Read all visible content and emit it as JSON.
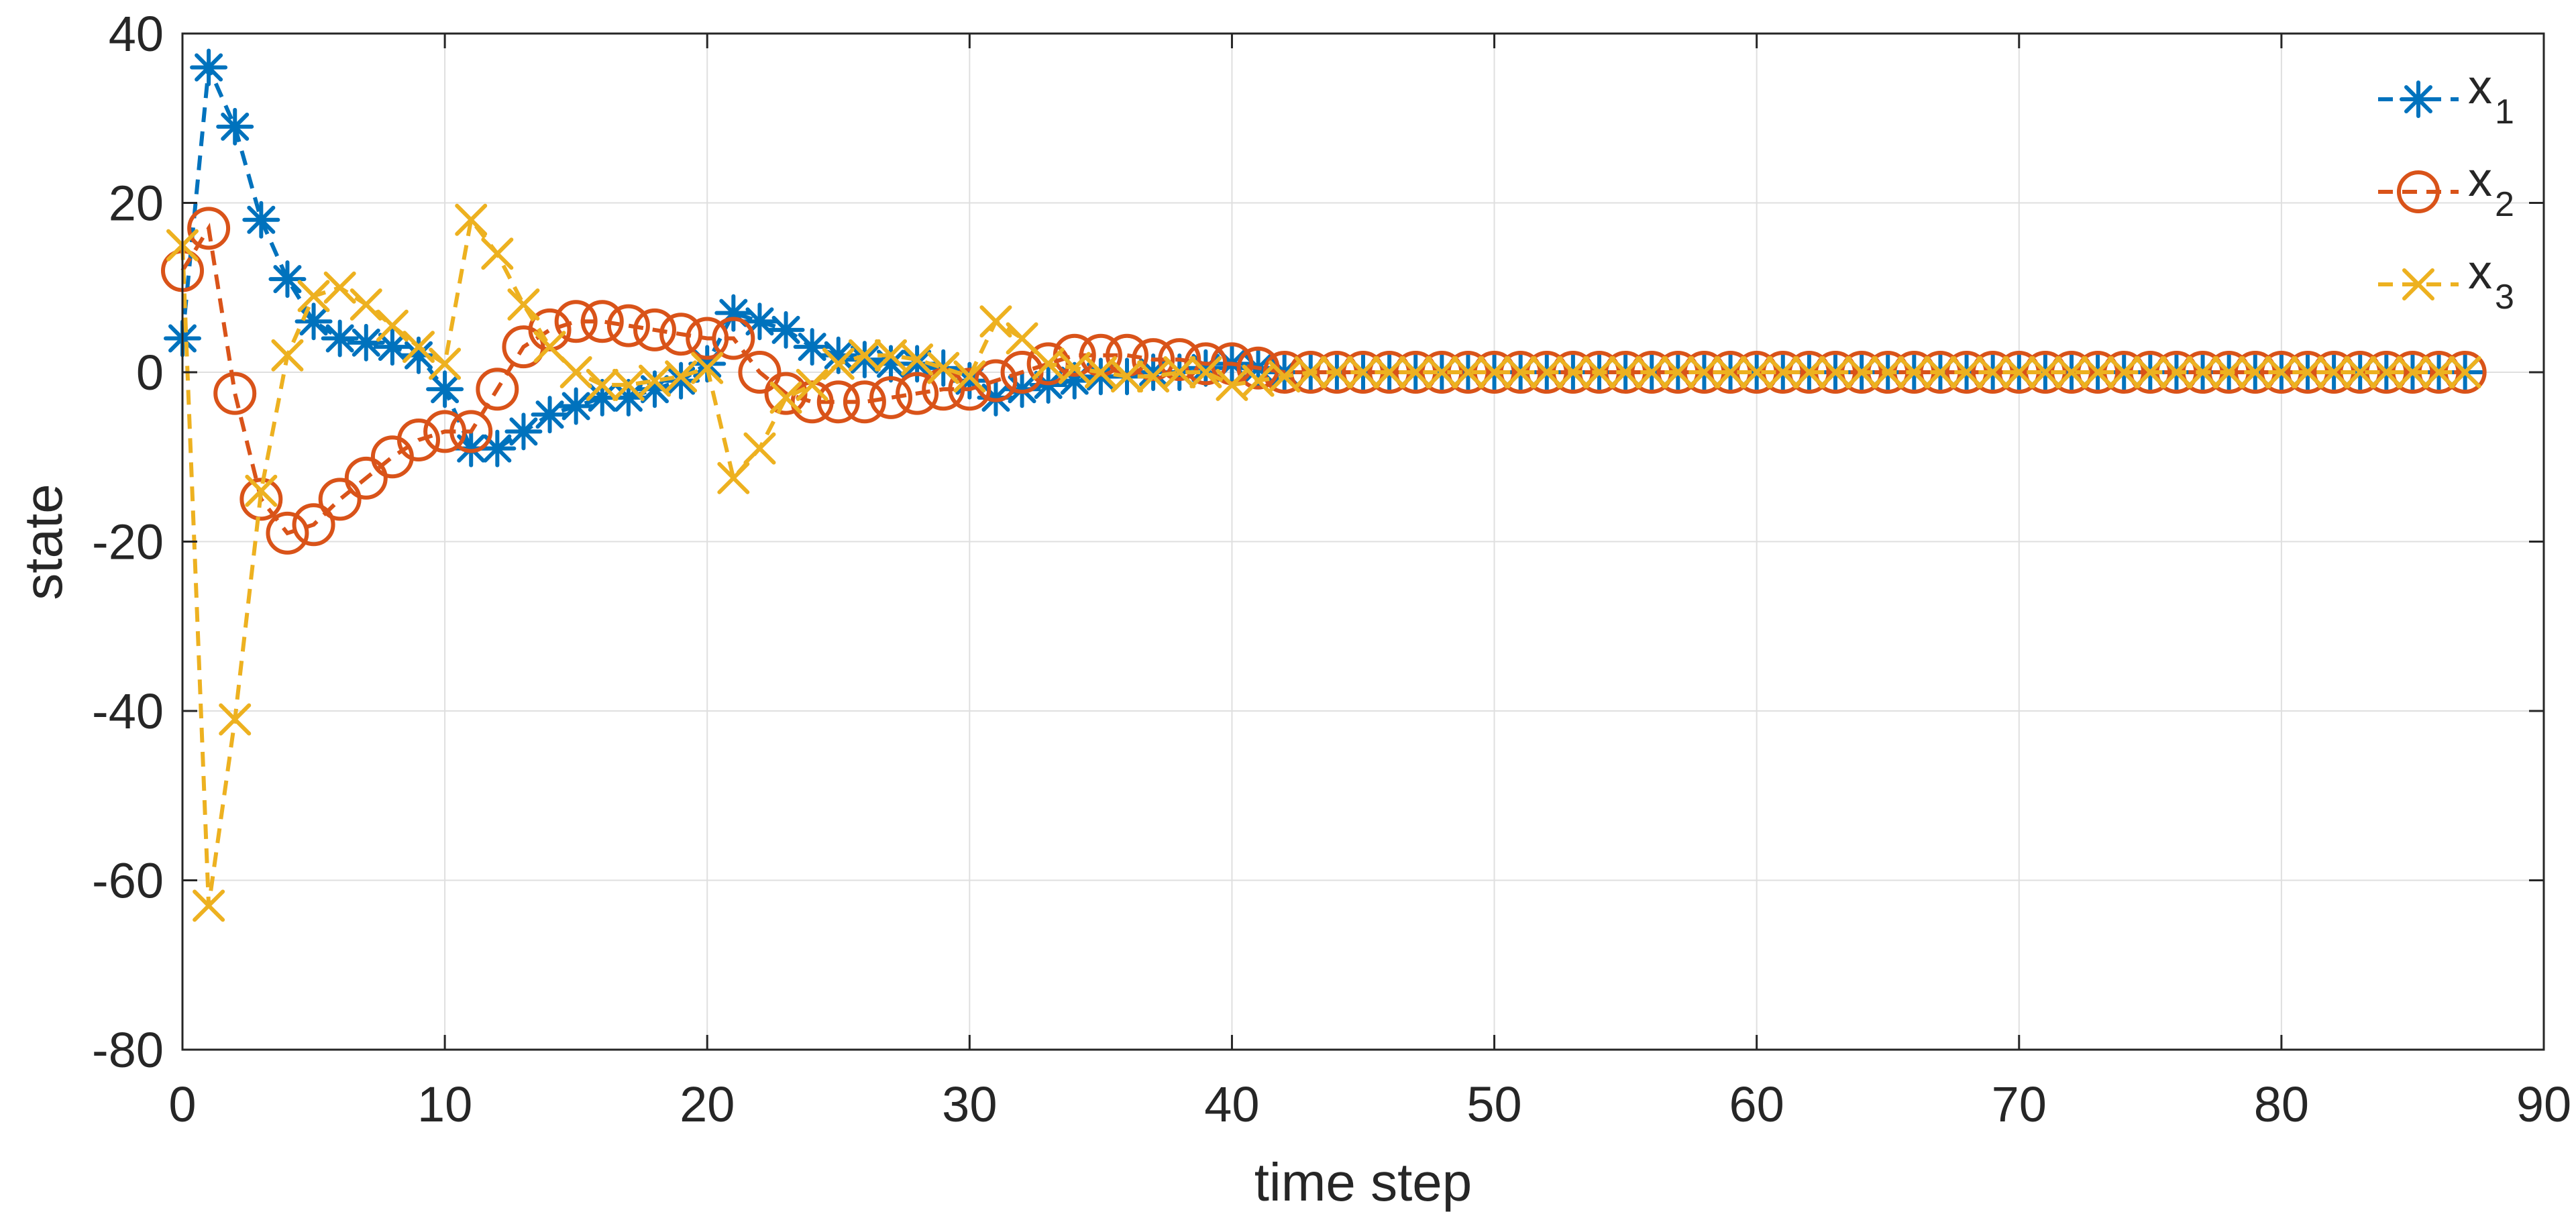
{
  "chart_data": {
    "type": "line",
    "title": "",
    "xlabel": "time step",
    "ylabel": "state",
    "xlim": [
      0,
      90
    ],
    "ylim": [
      -80,
      40
    ],
    "xticks": [
      0,
      10,
      20,
      30,
      40,
      50,
      60,
      70,
      80,
      90
    ],
    "yticks": [
      -80,
      -60,
      -40,
      -20,
      0,
      20,
      40
    ],
    "xtick_labels": [
      "0",
      "10",
      "20",
      "30",
      "40",
      "50",
      "60",
      "70",
      "80",
      "90"
    ],
    "ytick_labels": [
      "-80",
      "-60",
      "-40",
      "-20",
      "0",
      "20",
      "40"
    ],
    "grid": true,
    "legend_position": "top-right",
    "x": [
      0,
      1,
      2,
      3,
      4,
      5,
      6,
      7,
      8,
      9,
      10,
      11,
      12,
      13,
      14,
      15,
      16,
      17,
      18,
      19,
      20,
      21,
      22,
      23,
      24,
      25,
      26,
      27,
      28,
      29,
      30,
      31,
      32,
      33,
      34,
      35,
      36,
      37,
      38,
      39,
      40,
      41,
      42,
      43,
      44,
      45,
      46,
      47,
      48,
      49,
      50,
      51,
      52,
      53,
      54,
      55,
      56,
      57,
      58,
      59,
      60,
      61,
      62,
      63,
      64,
      65,
      66,
      67,
      68,
      69,
      70,
      71,
      72,
      73,
      74,
      75,
      76,
      77,
      78,
      79,
      80,
      81,
      82,
      83,
      84,
      85,
      86,
      87
    ],
    "series": [
      {
        "name": "x1",
        "label_base": "x",
        "label_sub": "1",
        "color": "#0072BD",
        "marker": "asterisk",
        "linestyle": "dashed",
        "values": [
          4,
          36,
          29,
          18,
          11,
          6,
          4,
          3.5,
          3,
          2,
          -2,
          -9,
          -9,
          -7,
          -5,
          -4,
          -3,
          -3,
          -2,
          -1,
          1,
          7,
          6,
          5,
          3,
          2,
          1.5,
          1,
          1,
          0.5,
          -1,
          -3,
          -2,
          -1.5,
          -1,
          -0.5,
          -0.5,
          0,
          0,
          0.5,
          1,
          0.5,
          0,
          0,
          0,
          0,
          0,
          0,
          0,
          0,
          0,
          0,
          0,
          0,
          0,
          0,
          0,
          0,
          0,
          0,
          0,
          0,
          0,
          0,
          0,
          0,
          0,
          0,
          0,
          0,
          0,
          0,
          0,
          0,
          0,
          0,
          0,
          0,
          0,
          0,
          0,
          0,
          0,
          0,
          0,
          0,
          0,
          0
        ]
      },
      {
        "name": "x2",
        "label_base": "x",
        "label_sub": "2",
        "color": "#D95319",
        "marker": "circle",
        "linestyle": "dashed",
        "values": [
          12,
          17,
          -2.5,
          -15,
          -19,
          -18,
          -15,
          -12.5,
          -10,
          -8,
          -7,
          -7,
          -2,
          3,
          5,
          6,
          6,
          5.5,
          5,
          4.5,
          4,
          4,
          0,
          -2.5,
          -3.5,
          -3.5,
          -3.5,
          -3,
          -2.5,
          -2,
          -2,
          -1,
          0,
          1,
          2,
          2,
          2,
          1.5,
          1.5,
          1,
          1,
          0.5,
          0,
          0,
          0,
          0,
          0,
          0,
          0,
          0,
          0,
          0,
          0,
          0,
          0,
          0,
          0,
          0,
          0,
          0,
          0,
          0,
          0,
          0,
          0,
          0,
          0,
          0,
          0,
          0,
          0,
          0,
          0,
          0,
          0,
          0,
          0,
          0,
          0,
          0,
          0,
          0,
          0,
          0,
          0,
          0,
          0,
          0
        ]
      },
      {
        "name": "x3",
        "label_base": "x",
        "label_sub": "3",
        "color": "#EDB120",
        "marker": "cross",
        "linestyle": "dashed",
        "values": [
          15,
          -63,
          -41,
          -14,
          2,
          9,
          10,
          8,
          5.5,
          3,
          1,
          18,
          14,
          8,
          3,
          0,
          -1.5,
          -1.5,
          -1,
          -0.5,
          0.5,
          -12.5,
          -9,
          -3,
          -1.5,
          1,
          2,
          2,
          1.5,
          0.5,
          -0.5,
          6,
          4,
          1,
          0.5,
          0,
          -0.5,
          -0.5,
          0,
          0,
          -1.5,
          -1,
          -0.5,
          0,
          0,
          0,
          0,
          0,
          0,
          0,
          0,
          0,
          0,
          0,
          0,
          0,
          0,
          0,
          0,
          0,
          0,
          0,
          0,
          0,
          0,
          0,
          0,
          0,
          0,
          0,
          0,
          0,
          0,
          0,
          0,
          0,
          0,
          0,
          0,
          0,
          0,
          0,
          0,
          0,
          0,
          0,
          0,
          0
        ]
      }
    ]
  }
}
